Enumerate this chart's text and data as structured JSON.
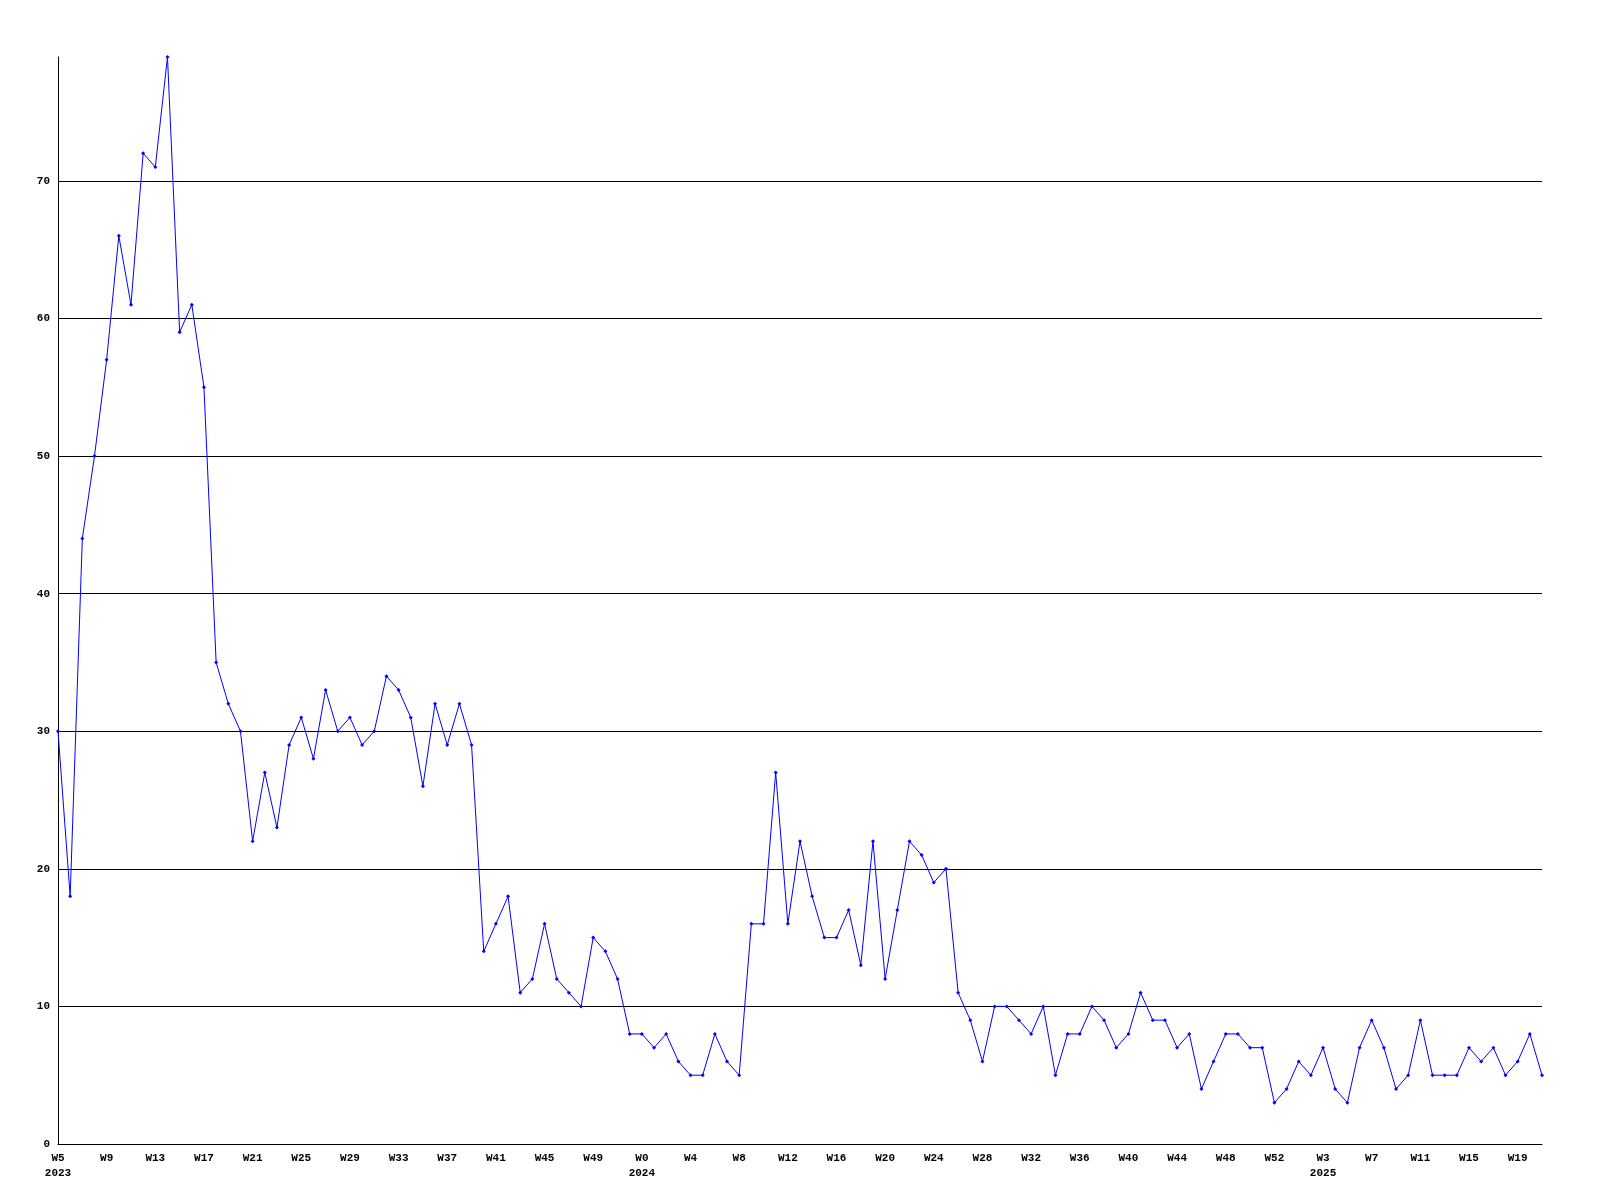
{
  "chart_data": {
    "type": "line",
    "categories": [
      "W5\n2023",
      null,
      null,
      null,
      "W9",
      null,
      null,
      null,
      "W13",
      null,
      null,
      null,
      "W17",
      null,
      null,
      null,
      "W21",
      null,
      null,
      null,
      "W25",
      null,
      null,
      null,
      "W29",
      null,
      null,
      null,
      "W33",
      null,
      null,
      null,
      "W37",
      null,
      null,
      null,
      "W41",
      null,
      null,
      null,
      "W45",
      null,
      null,
      null,
      "W49",
      null,
      null,
      null,
      "W0\n2024",
      null,
      null,
      null,
      "W4",
      null,
      null,
      null,
      "W8",
      null,
      null,
      null,
      "W12",
      null,
      null,
      null,
      "W16",
      null,
      null,
      null,
      "W20",
      null,
      null,
      null,
      "W24",
      null,
      null,
      null,
      "W28",
      null,
      null,
      null,
      "W32",
      null,
      null,
      null,
      "W36",
      null,
      null,
      null,
      "W40",
      null,
      null,
      null,
      "W44",
      null,
      null,
      null,
      "W48",
      null,
      null,
      null,
      "W52",
      null,
      null,
      null,
      "W3\n2025",
      null,
      null,
      null,
      "W7",
      null,
      null,
      null,
      "W11",
      null,
      null,
      null,
      "W15",
      null,
      null,
      null,
      "W19",
      null,
      null
    ],
    "series": [
      {
        "color": "#0000ff",
        "values": [
          30,
          18,
          44,
          50,
          57,
          66,
          61,
          72,
          71,
          79,
          59,
          61,
          55,
          35,
          32,
          30,
          22,
          27,
          23,
          29,
          31,
          28,
          33,
          30,
          31,
          29,
          30,
          34,
          33,
          31,
          26,
          32,
          29,
          32,
          29,
          14,
          16,
          18,
          11,
          12,
          16,
          12,
          11,
          10,
          15,
          14,
          12,
          8,
          8,
          7,
          8,
          6,
          5,
          5,
          8,
          6,
          5,
          16,
          16,
          27,
          16,
          22,
          18,
          15,
          15,
          17,
          13,
          22,
          12,
          17,
          22,
          21,
          19,
          20,
          11,
          9,
          6,
          10,
          10,
          9,
          8,
          10,
          5,
          8,
          8,
          10,
          9,
          7,
          8,
          11,
          9,
          9,
          7,
          8,
          4,
          6,
          8,
          8,
          7,
          7,
          3,
          4,
          6,
          5,
          7,
          4,
          3,
          7,
          9,
          7,
          4,
          5,
          9,
          5,
          5,
          5,
          7,
          6,
          7,
          5,
          6,
          8,
          5
        ]
      }
    ],
    "ylim": [
      0,
      79
    ],
    "yticks": [
      0,
      10,
      20,
      30,
      40,
      50,
      60,
      70
    ],
    "grid": "y",
    "marker": "diamond",
    "line_style": "solid"
  }
}
